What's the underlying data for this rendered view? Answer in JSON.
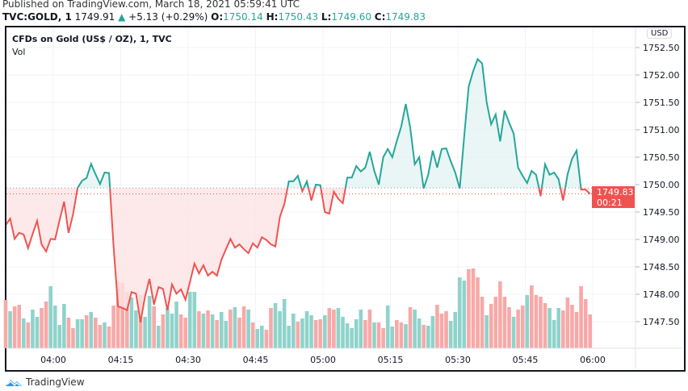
{
  "header": {
    "published": "Published on TradingView.com, March 18, 2021 05:59:41 UTC",
    "symbol": "TVC:GOLD, 1",
    "last": "1749.91",
    "change": "+5.13 (+0.29%)",
    "o_label": "O:",
    "o": "1750.14",
    "h_label": "H:",
    "h": "1750.43",
    "l_label": "L:",
    "l": "1749.60",
    "c_label": "C:",
    "c": "1749.83"
  },
  "legend": {
    "title": "CFDs on Gold (US$ / OZ), 1, TVC",
    "vol": "Vol"
  },
  "price_axis": {
    "currency": "USD",
    "ticks": [
      "1752.50",
      "1752.00",
      "1751.50",
      "1751.00",
      "1750.50",
      "1750.00",
      "1749.50",
      "1749.00",
      "1748.50",
      "1748.00",
      "1747.50"
    ],
    "last_price": "1749.83",
    "countdown": "00:21"
  },
  "time_axis": {
    "ticks": [
      "04:00",
      "04:15",
      "04:30",
      "04:45",
      "05:00",
      "05:15",
      "05:30",
      "05:45",
      "06:00"
    ]
  },
  "branding": {
    "logo_text": "TradingView"
  },
  "colors": {
    "up": "#26a69a",
    "down": "#ef5350",
    "up_fill": "#e0f2f1",
    "down_fill": "#fde4e4",
    "vol_up": "#8fd3cb",
    "vol_down": "#f7a9a7",
    "logo": "#2196f3"
  },
  "chart_data": {
    "type": "area",
    "style": "baseline",
    "start_time": "03:49",
    "interval": "1 minute",
    "baseline_value": 1749.94,
    "last_price": 1749.83,
    "ylim": [
      1747.25,
      1752.75
    ],
    "grid": true,
    "prices": [
      1749.26,
      1749.38,
      1749.01,
      1749.12,
      1749.09,
      1748.84,
      1749.1,
      1749.34,
      1748.91,
      1748.78,
      1749.01,
      1749.0,
      1749.35,
      1749.69,
      1749.12,
      1749.46,
      1749.94,
      1750.07,
      1750.12,
      1750.38,
      1750.19,
      1750.01,
      1750.22,
      1750.21,
      1748.88,
      1747.78,
      1747.75,
      1747.71,
      1748.04,
      1748.01,
      1747.49,
      1747.96,
      1748.28,
      1747.81,
      1748.13,
      1748.1,
      1747.71,
      1748.18,
      1748.01,
      1748.09,
      1747.9,
      1748.22,
      1748.56,
      1748.38,
      1748.53,
      1748.34,
      1748.41,
      1748.34,
      1748.63,
      1748.82,
      1749.01,
      1748.85,
      1748.91,
      1748.82,
      1748.75,
      1748.93,
      1748.85,
      1749.04,
      1748.99,
      1748.91,
      1748.87,
      1749.41,
      1749.65,
      1750.06,
      1750.06,
      1750.16,
      1749.88,
      1750.06,
      1749.71,
      1750.0,
      1749.99,
      1749.5,
      1749.47,
      1749.87,
      1749.74,
      1749.66,
      1750.13,
      1750.13,
      1750.34,
      1750.24,
      1750.31,
      1750.6,
      1750.25,
      1750.0,
      1750.5,
      1750.65,
      1750.5,
      1750.79,
      1751.06,
      1751.47,
      1751.04,
      1750.37,
      1750.5,
      1749.93,
      1750.18,
      1750.62,
      1750.31,
      1750.65,
      1750.66,
      1750.43,
      1750.22,
      1749.93,
      1750.87,
      1751.79,
      1752.07,
      1752.29,
      1752.21,
      1751.5,
      1751.1,
      1751.28,
      1750.79,
      1751.35,
      1751.13,
      1750.93,
      1750.31,
      1750.16,
      1750.03,
      1750.25,
      1750.18,
      1749.79,
      1750.37,
      1750.18,
      1750.22,
      1750.1,
      1749.71,
      1750.19,
      1750.47,
      1750.62,
      1749.91,
      1749.91,
      1749.83
    ],
    "volume_relative": [
      60,
      46,
      52,
      54,
      37,
      32,
      48,
      39,
      50,
      58,
      77,
      53,
      29,
      55,
      38,
      25,
      36,
      36,
      41,
      45,
      38,
      29,
      32,
      27,
      53,
      83,
      81,
      70,
      63,
      47,
      66,
      39,
      65,
      52,
      28,
      42,
      50,
      43,
      58,
      42,
      38,
      70,
      70,
      46,
      43,
      47,
      42,
      35,
      45,
      34,
      48,
      51,
      38,
      52,
      48,
      32,
      24,
      28,
      23,
      50,
      56,
      46,
      61,
      28,
      43,
      33,
      37,
      46,
      41,
      35,
      36,
      41,
      50,
      48,
      50,
      39,
      31,
      25,
      36,
      48,
      35,
      48,
      32,
      32,
      25,
      53,
      27,
      35,
      32,
      30,
      51,
      48,
      37,
      29,
      28,
      40,
      54,
      43,
      46,
      34,
      45,
      88,
      84,
      98,
      99,
      88,
      64,
      41,
      55,
      64,
      83,
      64,
      51,
      39,
      48,
      53,
      66,
      78,
      66,
      64,
      56,
      50,
      35,
      50,
      47,
      63,
      54,
      45,
      77,
      61,
      42
    ],
    "volume_direction": "rgrrgrggrrggggrrggrgrrgrrrrrggrggrgrgggrrggrg",
    "volume_direction_2": "rgrggrgrrgrggrrgggggrgggrrgrrggggggrrgrr",
    "volume_direction_3": "ggrrgrggrggrrrggggrrrrgrrrrrgrrgrrrrgggrrr"
  }
}
